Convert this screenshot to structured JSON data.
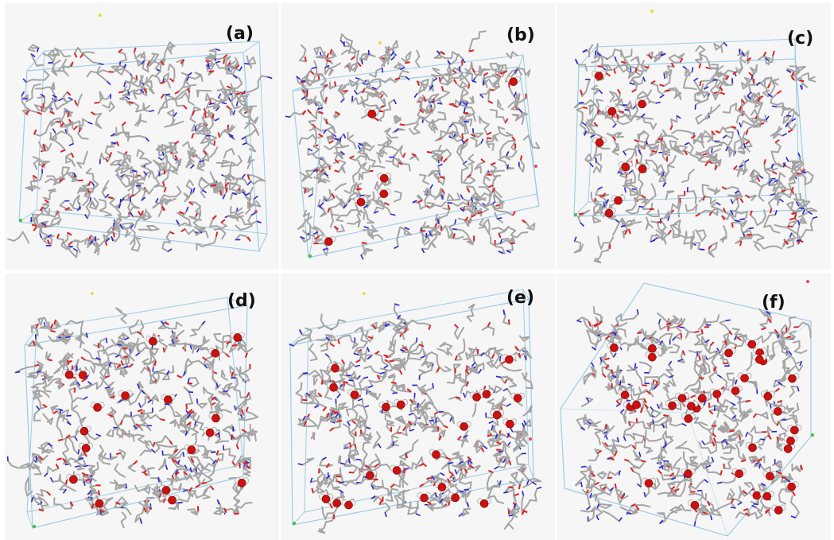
{
  "panels": [
    {
      "label": "(a)",
      "water": 0
    },
    {
      "label": "(b)",
      "water": 6
    },
    {
      "label": "(c)",
      "water": 8
    },
    {
      "label": "(d)",
      "water": 18
    },
    {
      "label": "(e)",
      "water": 22
    },
    {
      "label": "(f)",
      "water": 36
    }
  ],
  "colors": {
    "background": "#f6f6f6",
    "box_edge": "#9ccbe8",
    "carbon": "#a4a4a4",
    "nitrogen": "#2222dd",
    "oxygen": "#e02020",
    "water_oxygen": "#cc1111",
    "water_hydrogen": "#f0f0f0",
    "axis_a": "#e05050",
    "axis_b": "#40c040",
    "axis_c": "#e0e040"
  },
  "icons": [
    "molecular-box-icon"
  ]
}
